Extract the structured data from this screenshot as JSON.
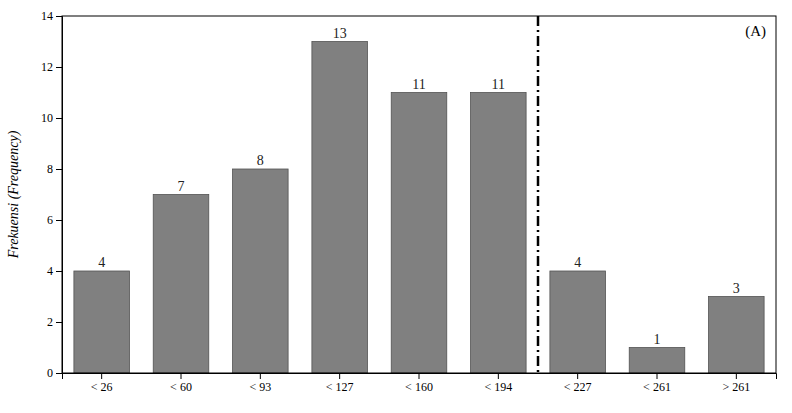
{
  "chart_data": {
    "type": "bar",
    "categories": [
      "< 26",
      "< 60",
      "< 93",
      "< 127",
      "< 160",
      "< 194",
      "< 227",
      "< 261",
      "> 261"
    ],
    "values": [
      4,
      7,
      8,
      13,
      11,
      11,
      4,
      1,
      3
    ],
    "color": "#808080",
    "ylabel": "Frekuensi (Frequency)",
    "ylim": [
      0,
      14
    ],
    "yticks": [
      0,
      2,
      4,
      6,
      8,
      10,
      12,
      14
    ],
    "annotation": "(A)",
    "divider_x": 5.5,
    "data_labels": true,
    "grid": false
  }
}
